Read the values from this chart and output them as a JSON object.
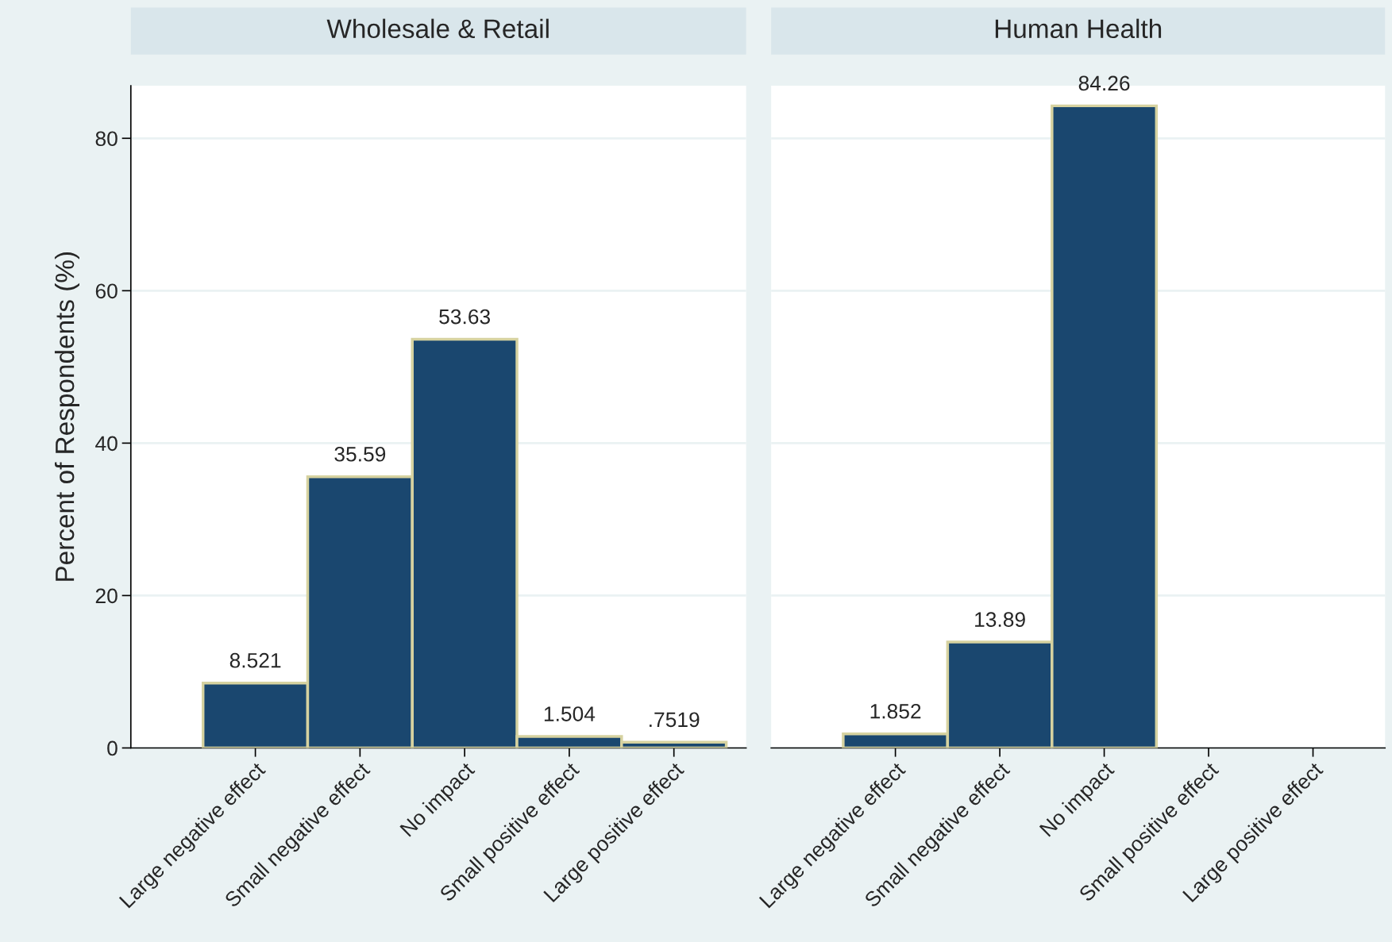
{
  "chart_data": [
    {
      "type": "bar",
      "title": "Wholesale & Retail",
      "ylabel": "Percent of Respondents (%)",
      "categories": [
        "Large negative effect",
        "Small negative effect",
        "No impact",
        "Small positive effect",
        "Large positive effect"
      ],
      "values": [
        8.521,
        35.59,
        53.63,
        1.504,
        0.7519
      ],
      "color": "#1a476f",
      "value_labels": [
        "8.521",
        "35.59",
        "53.63",
        "1.504",
        ".7519"
      ],
      "ylim": [
        0,
        86.9
      ],
      "yticks": [
        0,
        20,
        40,
        60,
        80
      ],
      "grid": "y"
    },
    {
      "type": "bar",
      "title": "Human Health",
      "categories": [
        "Large negative effect",
        "Small negative effect",
        "No impact",
        "Small positive effect",
        "Large positive effect"
      ],
      "values": [
        1.852,
        13.89,
        84.26,
        null,
        null
      ],
      "color": "#1a476f",
      "value_labels": [
        "1.852",
        "13.89",
        "84.26",
        null,
        null
      ],
      "ylim": [
        0,
        86.9
      ],
      "yticks": [
        0,
        20,
        40,
        60,
        80
      ],
      "grid": "y",
      "tick_labels": "x"
    }
  ]
}
